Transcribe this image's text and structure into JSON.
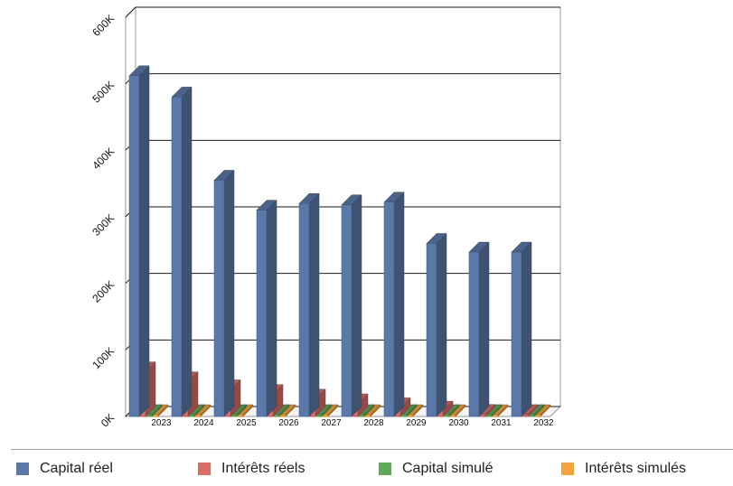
{
  "chart_data": {
    "type": "bar",
    "categories": [
      "2023",
      "2024",
      "2025",
      "2026",
      "2027",
      "2028",
      "2029",
      "2030",
      "2031",
      "2032"
    ],
    "series": [
      {
        "name": "Capital réel",
        "color": "#5b79a8",
        "values": [
          512000,
          480000,
          355000,
          310000,
          320000,
          318000,
          322000,
          260000,
          247000,
          247000
        ]
      },
      {
        "name": "Intérêts réels",
        "color": "#dc6c66",
        "values": [
          67000,
          52000,
          40000,
          33000,
          26000,
          19000,
          13000,
          8000,
          3000,
          0
        ]
      },
      {
        "name": "Capital simulé",
        "color": "#5faa5a",
        "values": [
          0,
          0,
          0,
          0,
          0,
          0,
          0,
          0,
          0,
          0
        ]
      },
      {
        "name": "Intérêts simulés",
        "color": "#f5a23a",
        "values": [
          0,
          0,
          0,
          0,
          0,
          0,
          0,
          0,
          0,
          0
        ]
      }
    ],
    "ylim": [
      0,
      600000
    ],
    "yticks": [
      "0K",
      "100K",
      "200K",
      "300K",
      "400K",
      "500K",
      "600K"
    ],
    "grid": true,
    "legend_position": "bottom",
    "style": "3d"
  }
}
